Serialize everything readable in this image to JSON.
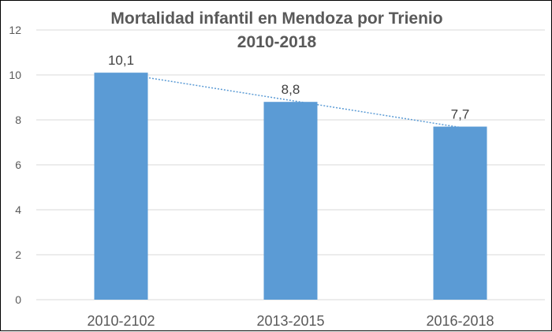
{
  "chart_data": {
    "type": "bar",
    "title": "Mortalidad infantil en Mendoza por Trienio",
    "subtitle": "2010-2018",
    "categories": [
      "2010-2102",
      "2013-2015",
      "2016-2018"
    ],
    "values": [
      10.1,
      8.8,
      7.7
    ],
    "data_labels": [
      "10,1",
      "8,8",
      "7,7"
    ],
    "yticks": [
      "0",
      "2",
      "4",
      "6",
      "8",
      "10",
      "12"
    ],
    "ylim": [
      0,
      12
    ],
    "ytick_step": 2,
    "xlabel": "",
    "ylabel": "",
    "grid": true,
    "legend": "none",
    "trendline": "linear",
    "colors": {
      "bar": "#5B9BD5",
      "trendline": "#5B9BD5",
      "grid": "#D9D9D9",
      "text": "#595959",
      "value_label": "#404040"
    }
  }
}
